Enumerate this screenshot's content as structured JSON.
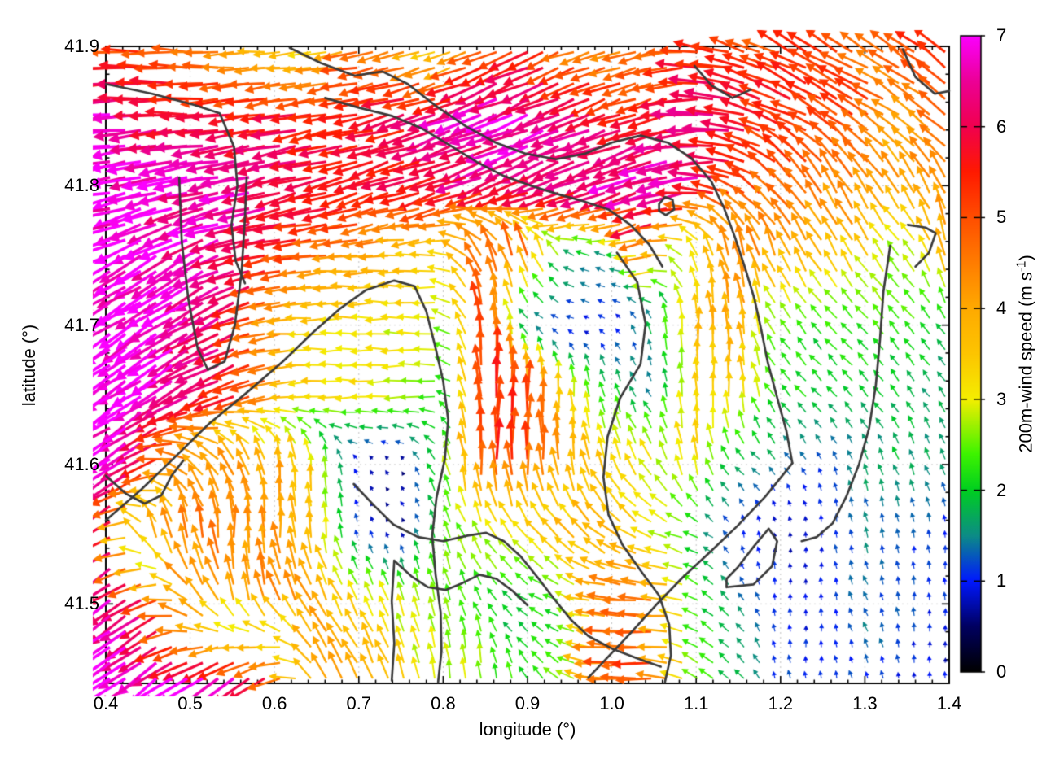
{
  "chart_data": {
    "type": "quiver",
    "title": "",
    "xlabel": "longitude (°)",
    "ylabel": "latitude (°)",
    "x_range": [
      0.4,
      1.4
    ],
    "y_range": [
      41.443,
      41.9
    ],
    "x_tick_labels": [
      "0.4",
      "0.5",
      "0.6",
      "0.7",
      "0.8",
      "0.9",
      "1.0",
      "1.1",
      "1.2",
      "1.3",
      "1.4"
    ],
    "y_tick_labels": [
      "41.9",
      "41.8",
      "41.7",
      "41.6",
      "41.5"
    ],
    "grid": "dotted lines at major ticks",
    "colorbar": {
      "label_prefix": "200m-wind speed (m s",
      "label_sup": "-1",
      "label_suffix": ")",
      "tick_labels": [
        "0",
        "1",
        "2",
        "3",
        "4",
        "5",
        "6",
        "7"
      ],
      "range": [
        0,
        7
      ],
      "colormap_stops": [
        [
          0.0,
          "#000000"
        ],
        [
          0.5,
          "#000060"
        ],
        [
          1.0,
          "#0018ff"
        ],
        [
          1.5,
          "#0c8c86"
        ],
        [
          2.0,
          "#00cf20"
        ],
        [
          2.4,
          "#3ef400"
        ],
        [
          3.0,
          "#f4ee00"
        ],
        [
          3.5,
          "#fdc500"
        ],
        [
          4.0,
          "#ffaa00"
        ],
        [
          4.5,
          "#ff7d00"
        ],
        [
          5.0,
          "#ff4e00"
        ],
        [
          5.5,
          "#ff1a00"
        ],
        [
          6.0,
          "#f1004e"
        ],
        [
          6.5,
          "#ec0096"
        ],
        [
          7.0,
          "#fb00ff"
        ]
      ]
    },
    "vector_grid": {
      "lon_start": 0.4,
      "lon_step": 0.05,
      "n_lon": 21,
      "lat_start": 41.9,
      "lat_step": -0.05,
      "n_lat": 10,
      "speed_ms": [
        [
          5.0,
          5.2,
          4.6,
          4.2,
          3.4,
          3.0,
          4.8,
          4.2,
          3.0,
          5.0,
          5.4,
          4.6,
          4.2,
          4.6,
          5.2,
          5.4,
          5.2,
          5.4,
          4.6,
          5.0,
          5.4
        ],
        [
          6.8,
          6.5,
          5.8,
          5.6,
          5.8,
          5.6,
          5.4,
          5.8,
          6.2,
          6.8,
          6.8,
          6.2,
          5.8,
          5.6,
          6.2,
          6.0,
          5.6,
          5.4,
          5.2,
          4.0,
          4.8
        ],
        [
          7.0,
          7.0,
          6.8,
          6.6,
          6.4,
          6.0,
          5.8,
          5.6,
          5.8,
          6.0,
          6.2,
          6.4,
          6.6,
          6.8,
          6.6,
          5.4,
          5.0,
          4.8,
          4.4,
          4.0,
          4.4
        ],
        [
          7.0,
          7.0,
          6.8,
          6.4,
          5.6,
          4.8,
          4.2,
          3.8,
          3.4,
          5.0,
          4.6,
          2.0,
          1.6,
          4.6,
          3.0,
          4.6,
          4.2,
          3.8,
          3.4,
          2.6,
          4.0
        ],
        [
          7.0,
          7.0,
          6.6,
          6.2,
          4.4,
          3.3,
          3.2,
          3.1,
          3.0,
          5.4,
          1.6,
          1.0,
          0.9,
          1.8,
          3.8,
          4.0,
          2.4,
          2.2,
          2.2,
          2.4,
          2.0
        ],
        [
          7.0,
          7.0,
          6.4,
          5.6,
          4.4,
          3.3,
          3.1,
          3.0,
          2.4,
          5.6,
          5.0,
          3.0,
          2.0,
          1.4,
          3.4,
          3.6,
          2.2,
          2.0,
          2.0,
          1.8,
          1.6
        ],
        [
          6.8,
          6.2,
          4.6,
          4.2,
          4.0,
          3.0,
          0.8,
          0.6,
          2.2,
          5.4,
          5.0,
          4.0,
          3.4,
          3.0,
          3.4,
          2.0,
          1.4,
          1.2,
          1.6,
          1.8,
          1.6
        ],
        [
          6.6,
          4.4,
          4.8,
          4.4,
          4.2,
          3.6,
          1.0,
          0.6,
          2.4,
          2.8,
          3.2,
          3.6,
          4.0,
          3.2,
          2.2,
          1.0,
          0.8,
          1.0,
          1.4,
          1.2,
          1.0
        ],
        [
          6.8,
          6.2,
          4.5,
          4.0,
          4.4,
          4.0,
          3.2,
          2.8,
          2.6,
          2.2,
          2.0,
          2.4,
          4.6,
          4.8,
          2.4,
          1.6,
          1.0,
          0.9,
          1.4,
          1.3,
          1.0
        ],
        [
          7.0,
          7.0,
          6.8,
          6.4,
          5.6,
          4.2,
          4.0,
          3.4,
          2.8,
          2.6,
          2.2,
          2.6,
          4.8,
          5.0,
          2.6,
          1.8,
          1.2,
          1.0,
          1.2,
          1.0,
          0.9
        ]
      ],
      "dir_deg_math": [
        [
          182,
          180,
          178,
          182,
          185,
          190,
          192,
          195,
          200,
          205,
          205,
          200,
          198,
          195,
          175,
          160,
          152,
          148,
          150,
          145,
          142
        ],
        [
          183,
          184,
          182,
          185,
          188,
          190,
          192,
          196,
          200,
          202,
          203,
          202,
          200,
          196,
          185,
          170,
          158,
          150,
          148,
          146,
          143
        ],
        [
          190,
          192,
          193,
          193,
          194,
          195,
          197,
          199,
          201,
          202,
          202,
          201,
          200,
          198,
          190,
          160,
          135,
          125,
          122,
          124,
          120
        ],
        [
          205,
          208,
          208,
          200,
          193,
          186,
          183,
          181,
          180,
          120,
          105,
          150,
          165,
          195,
          120,
          105,
          115,
          120,
          122,
          130,
          100
        ],
        [
          212,
          215,
          213,
          205,
          190,
          182,
          180,
          180,
          178,
          92,
          140,
          170,
          150,
          100,
          92,
          95,
          125,
          130,
          135,
          130,
          128
        ],
        [
          213,
          215,
          210,
          200,
          188,
          183,
          181,
          180,
          178,
          90,
          88,
          95,
          110,
          120,
          90,
          92,
          130,
          135,
          132,
          128,
          125
        ],
        [
          214,
          210,
          150,
          120,
          100,
          95,
          120,
          130,
          120,
          90,
          90,
          95,
          110,
          120,
          95,
          140,
          130,
          115,
          110,
          115,
          112
        ],
        [
          215,
          110,
          95,
          92,
          93,
          95,
          110,
          120,
          110,
          120,
          130,
          135,
          140,
          150,
          165,
          100,
          95,
          92,
          105,
          100,
          95
        ],
        [
          214,
          213,
          140,
          105,
          110,
          118,
          115,
          110,
          105,
          120,
          150,
          160,
          178,
          180,
          150,
          130,
          95,
          92,
          115,
          95,
          92
        ],
        [
          213,
          215,
          214,
          212,
          210,
          125,
          120,
          110,
          100,
          95,
          120,
          150,
          178,
          180,
          150,
          135,
          100,
          95,
          110,
          95,
          90
        ]
      ]
    },
    "contours_lonlat": [
      [
        [
          0.4,
          41.873
        ],
        [
          0.455,
          41.866
        ],
        [
          0.505,
          41.858
        ],
        [
          0.535,
          41.852
        ],
        [
          0.552,
          41.828
        ],
        [
          0.556,
          41.8
        ],
        [
          0.549,
          41.772
        ],
        [
          0.554,
          41.746
        ],
        [
          0.565,
          41.73
        ]
      ],
      [
        [
          0.487,
          41.806
        ],
        [
          0.49,
          41.76
        ],
        [
          0.498,
          41.718
        ],
        [
          0.509,
          41.683
        ],
        [
          0.521,
          41.668
        ],
        [
          0.541,
          41.674
        ],
        [
          0.553,
          41.7
        ],
        [
          0.561,
          41.738
        ],
        [
          0.565,
          41.777
        ],
        [
          0.567,
          41.806
        ]
      ],
      [
        [
          0.4,
          41.56
        ],
        [
          0.442,
          41.582
        ],
        [
          0.478,
          41.603
        ],
        [
          0.522,
          41.629
        ],
        [
          0.566,
          41.651
        ],
        [
          0.61,
          41.674
        ],
        [
          0.646,
          41.695
        ],
        [
          0.678,
          41.712
        ],
        [
          0.708,
          41.725
        ],
        [
          0.742,
          41.732
        ],
        [
          0.766,
          41.728
        ],
        [
          0.78,
          41.71
        ],
        [
          0.79,
          41.686
        ],
        [
          0.8,
          41.66
        ],
        [
          0.806,
          41.632
        ],
        [
          0.802,
          41.604
        ],
        [
          0.792,
          41.576
        ],
        [
          0.787,
          41.549
        ],
        [
          0.791,
          41.521
        ],
        [
          0.797,
          41.494
        ],
        [
          0.798,
          41.466
        ],
        [
          0.794,
          41.444
        ]
      ],
      [
        [
          1.006,
          41.752
        ],
        [
          1.03,
          41.731
        ],
        [
          1.04,
          41.701
        ],
        [
          1.034,
          41.672
        ],
        [
          1.01,
          41.648
        ],
        [
          0.995,
          41.62
        ],
        [
          0.99,
          41.591
        ],
        [
          0.996,
          41.564
        ],
        [
          1.012,
          41.543
        ],
        [
          1.034,
          41.524
        ],
        [
          1.056,
          41.506
        ],
        [
          1.068,
          41.485
        ],
        [
          1.07,
          41.463
        ],
        [
          1.063,
          41.444
        ]
      ],
      [
        [
          0.618,
          41.899
        ],
        [
          0.655,
          41.888
        ],
        [
          0.695,
          41.879
        ],
        [
          0.728,
          41.882
        ],
        [
          0.758,
          41.873
        ],
        [
          0.792,
          41.857
        ],
        [
          0.826,
          41.843
        ],
        [
          0.862,
          41.831
        ],
        [
          0.898,
          41.823
        ],
        [
          0.934,
          41.819
        ],
        [
          0.968,
          41.823
        ],
        [
          1.0,
          41.831
        ],
        [
          1.034,
          41.836
        ],
        [
          1.066,
          41.831
        ],
        [
          1.094,
          41.82
        ],
        [
          1.118,
          41.803
        ],
        [
          1.133,
          41.784
        ],
        [
          1.146,
          41.763
        ],
        [
          1.158,
          41.741
        ],
        [
          1.169,
          41.719
        ],
        [
          1.177,
          41.697
        ],
        [
          1.185,
          41.673
        ],
        [
          1.196,
          41.648
        ],
        [
          1.207,
          41.624
        ],
        [
          1.214,
          41.601
        ]
      ],
      [
        [
          1.214,
          41.601
        ],
        [
          1.182,
          41.577
        ],
        [
          1.149,
          41.556
        ],
        [
          1.116,
          41.537
        ],
        [
          1.084,
          41.519
        ],
        [
          1.052,
          41.499
        ],
        [
          1.022,
          41.479
        ],
        [
          0.994,
          41.461
        ],
        [
          0.972,
          41.447
        ]
      ],
      [
        [
          0.66,
          41.863
        ],
        [
          0.7,
          41.856
        ],
        [
          0.74,
          41.85
        ],
        [
          0.775,
          41.841
        ],
        [
          0.808,
          41.829
        ],
        [
          0.84,
          41.817
        ],
        [
          0.872,
          41.807
        ],
        [
          0.904,
          41.8
        ],
        [
          0.936,
          41.794
        ],
        [
          0.966,
          41.789
        ],
        [
          0.996,
          41.783
        ],
        [
          1.022,
          41.772
        ],
        [
          1.044,
          41.758
        ],
        [
          1.06,
          41.742
        ]
      ],
      [
        [
          1.098,
          41.886
        ],
        [
          1.118,
          41.872
        ],
        [
          1.143,
          41.863
        ],
        [
          1.165,
          41.869
        ]
      ],
      [
        [
          1.345,
          41.898
        ],
        [
          1.36,
          41.878
        ],
        [
          1.383,
          41.866
        ],
        [
          1.4,
          41.868
        ]
      ],
      [
        [
          1.136,
          41.512
        ],
        [
          1.168,
          41.514
        ],
        [
          1.19,
          41.527
        ],
        [
          1.196,
          41.545
        ],
        [
          1.186,
          41.554
        ],
        [
          1.168,
          41.541
        ],
        [
          1.149,
          41.526
        ],
        [
          1.136,
          41.518
        ],
        [
          1.136,
          41.512
        ]
      ],
      [
        [
          1.056,
          41.787
        ],
        [
          1.063,
          41.792
        ],
        [
          1.072,
          41.79
        ],
        [
          1.074,
          41.783
        ],
        [
          1.064,
          41.779
        ],
        [
          1.056,
          41.782
        ],
        [
          1.056,
          41.787
        ]
      ],
      [
        [
          0.694,
          41.586
        ],
        [
          0.719,
          41.57
        ],
        [
          0.741,
          41.557
        ],
        [
          0.77,
          41.548
        ],
        [
          0.8,
          41.545
        ],
        [
          0.829,
          41.549
        ],
        [
          0.851,
          41.551
        ],
        [
          0.872,
          41.545
        ],
        [
          0.892,
          41.534
        ],
        [
          0.912,
          41.519
        ],
        [
          0.931,
          41.504
        ],
        [
          0.951,
          41.489
        ],
        [
          0.972,
          41.477
        ],
        [
          1.0,
          41.468
        ],
        [
          1.03,
          41.461
        ],
        [
          1.058,
          41.455
        ]
      ],
      [
        [
          0.742,
          41.531
        ],
        [
          0.762,
          41.52
        ],
        [
          0.782,
          41.512
        ],
        [
          0.803,
          41.51
        ],
        [
          0.823,
          41.515
        ],
        [
          0.843,
          41.521
        ],
        [
          0.863,
          41.518
        ],
        [
          0.883,
          41.509
        ],
        [
          0.9,
          41.499
        ]
      ],
      [
        [
          0.742,
          41.531
        ],
        [
          0.739,
          41.502
        ],
        [
          0.742,
          41.472
        ],
        [
          0.739,
          41.445
        ]
      ],
      [
        [
          0.4,
          41.592
        ],
        [
          0.424,
          41.579
        ],
        [
          0.446,
          41.572
        ],
        [
          0.466,
          41.578
        ],
        [
          0.478,
          41.592
        ],
        [
          0.492,
          41.603
        ]
      ],
      [
        [
          1.33,
          41.757
        ],
        [
          1.322,
          41.724
        ],
        [
          1.318,
          41.69
        ],
        [
          1.313,
          41.657
        ],
        [
          1.305,
          41.626
        ],
        [
          1.293,
          41.6
        ],
        [
          1.278,
          41.577
        ],
        [
          1.262,
          41.558
        ],
        [
          1.243,
          41.548
        ],
        [
          1.225,
          41.545
        ]
      ],
      [
        [
          1.351,
          41.772
        ],
        [
          1.372,
          41.77
        ],
        [
          1.384,
          41.766
        ],
        [
          1.376,
          41.752
        ],
        [
          1.36,
          41.742
        ]
      ]
    ]
  }
}
